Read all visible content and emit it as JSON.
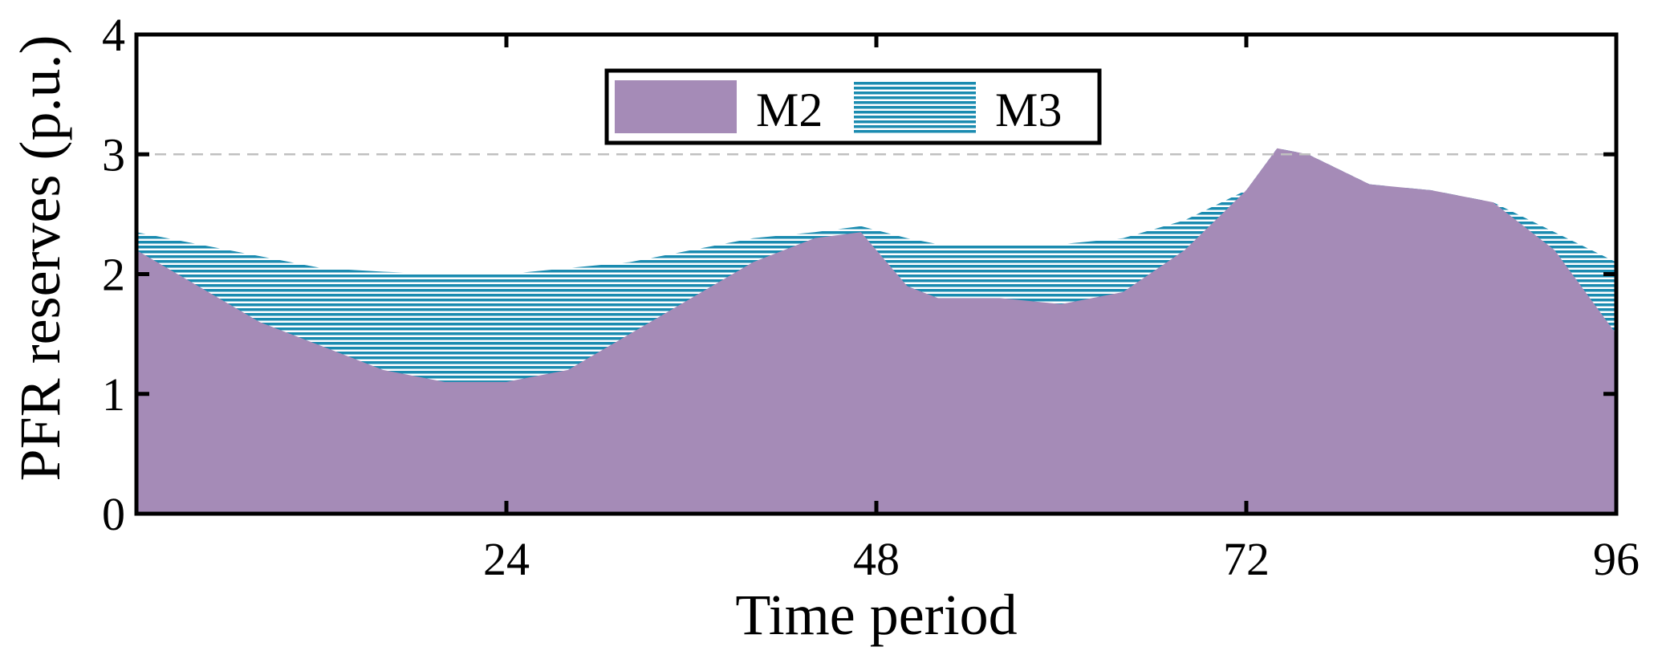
{
  "chart_data": {
    "type": "area",
    "xlabel": "Time period",
    "ylabel": "PFR reserves (p.u.)",
    "xlim": [
      0,
      96
    ],
    "ylim": [
      0,
      4
    ],
    "xticks": [
      24,
      48,
      72,
      96
    ],
    "yticks": [
      0,
      1,
      2,
      3,
      4
    ],
    "reference_line": {
      "y": 3,
      "style": "dashed",
      "color": "#c0c0c0"
    },
    "legend_placement": "top-center",
    "x": [
      0,
      4,
      8,
      12,
      16,
      20,
      24,
      28,
      32,
      36,
      40,
      44,
      47,
      50,
      52,
      56,
      60,
      64,
      68,
      72,
      74,
      76,
      80,
      84,
      88,
      92,
      96
    ],
    "series": [
      {
        "name": "M2",
        "color": "#a58bb7",
        "fill": "solid",
        "values": [
          2.2,
          1.9,
          1.6,
          1.4,
          1.2,
          1.1,
          1.1,
          1.2,
          1.5,
          1.8,
          2.1,
          2.3,
          2.35,
          1.9,
          1.8,
          1.8,
          1.75,
          1.85,
          2.2,
          2.7,
          3.05,
          3.0,
          2.75,
          2.7,
          2.6,
          2.2,
          1.5
        ]
      },
      {
        "name": "M3",
        "color": "#1a8bb0",
        "fill": "horizontal-hatch",
        "values": [
          2.35,
          2.25,
          2.15,
          2.05,
          2.02,
          2.0,
          2.0,
          2.05,
          2.1,
          2.2,
          2.3,
          2.35,
          2.4,
          2.3,
          2.25,
          2.25,
          2.25,
          2.3,
          2.45,
          2.7,
          3.05,
          3.0,
          2.75,
          2.7,
          2.6,
          2.35,
          2.1
        ]
      }
    ]
  }
}
